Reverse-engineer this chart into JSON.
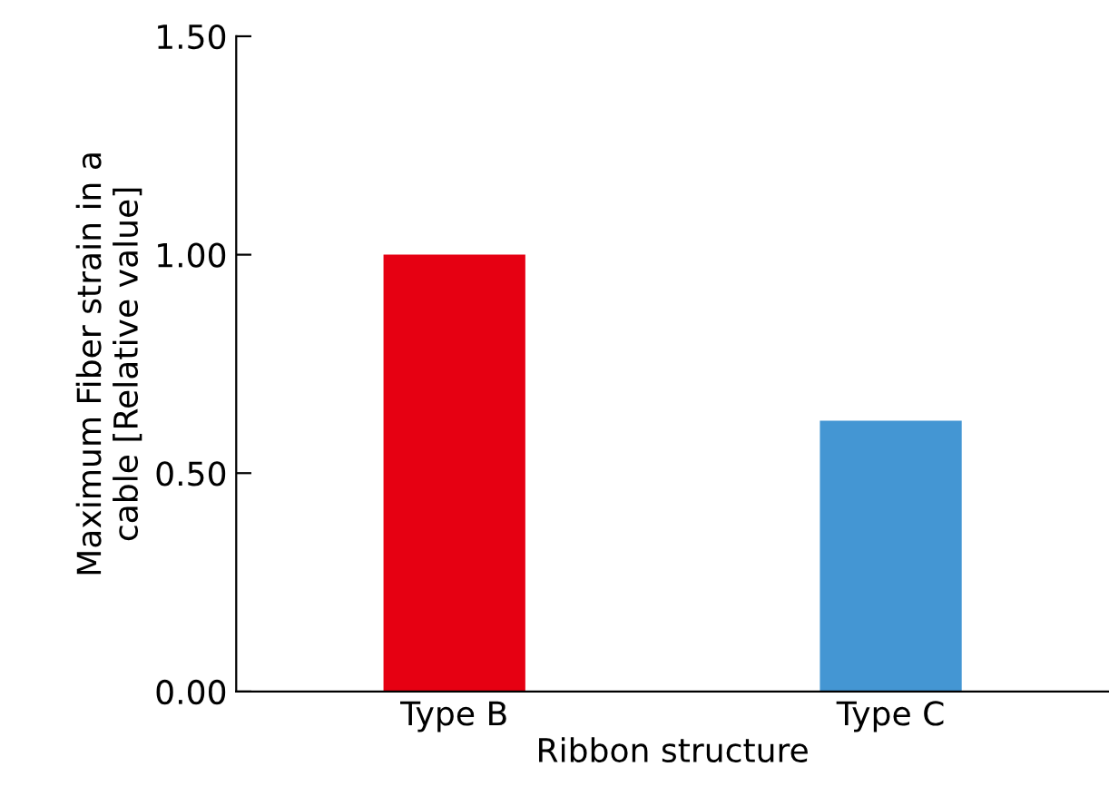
{
  "chart_data": {
    "type": "bar",
    "xlabel": "Ribbon structure",
    "ylabel": "Maximum Fiber strain in a\ncable [Relative value]",
    "categories": [
      "Type B",
      "Type C"
    ],
    "values": [
      1.0,
      0.62
    ],
    "colors": [
      "#e60012",
      "#4496d3"
    ],
    "ylim": [
      0,
      1.5
    ],
    "yticks": [
      {
        "value": 0,
        "label": "0.00"
      },
      {
        "value": 0.5,
        "label": "0.50"
      },
      {
        "value": 1.0,
        "label": "1.00"
      },
      {
        "value": 1.5,
        "label": "1.50"
      }
    ],
    "grid": false
  }
}
